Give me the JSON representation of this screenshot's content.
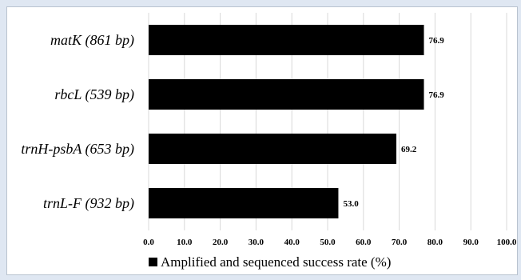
{
  "chart_data": {
    "type": "bar",
    "orientation": "horizontal",
    "categories": [
      "matK (861 bp)",
      "rbcL (539 bp)",
      "trnH-psbA (653 bp)",
      "trnL-F (932 bp)"
    ],
    "series": [
      {
        "name": "Amplified and sequenced success rate (%)",
        "values": [
          76.9,
          76.9,
          69.2,
          53.0
        ],
        "value_labels": [
          "76.9",
          "76.9",
          "69.2",
          "53.0"
        ],
        "color": "#000000"
      }
    ],
    "x_ticks": [
      "0.0",
      "10.0",
      "20.0",
      "30.0",
      "40.0",
      "50.0",
      "60.0",
      "70.0",
      "80.0",
      "90.0",
      "100.0"
    ],
    "xlim": [
      0,
      100
    ],
    "grid": true,
    "legend": "bottom-center",
    "title": "",
    "xlabel": "",
    "ylabel": ""
  }
}
